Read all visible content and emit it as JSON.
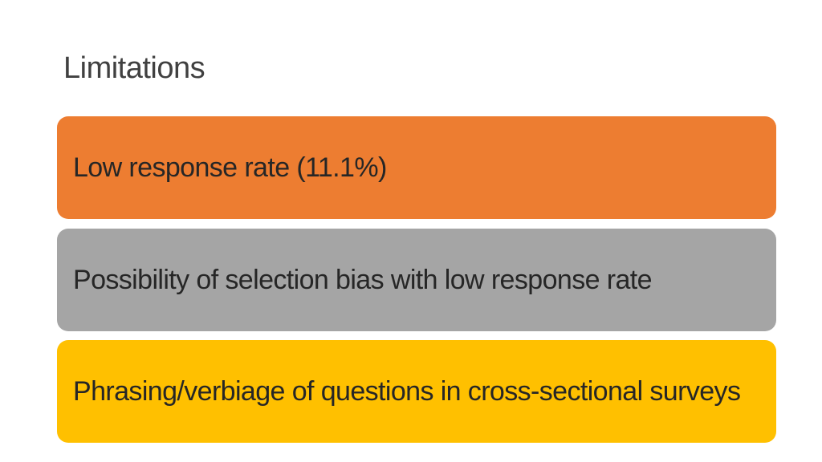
{
  "slide": {
    "title": "Limitations",
    "items": [
      {
        "text": "Low response rate (11.1%)",
        "color": "#ED7D31"
      },
      {
        "text": "Possibility of selection bias with low response rate",
        "color": "#A5A5A5"
      },
      {
        "text": "Phrasing/verbiage of questions in cross-sectional surveys",
        "color": "#FFC000"
      }
    ]
  }
}
